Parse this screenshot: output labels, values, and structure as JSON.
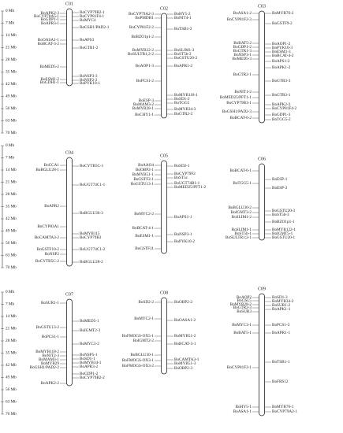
{
  "scale_labels": [
    "0 Mb",
    "7 Mb",
    "14 Mb",
    "21 Mb",
    "28 Mb",
    "35 Mb",
    "42 Mb",
    "49 Mb",
    "56 Mb",
    "63 Mb",
    "70 Mb"
  ],
  "chromosomes": [
    {
      "name": "C01",
      "left": [
        "BoAPK2-3",
        "BoCYP78A5-1",
        "BoGDP1-1",
        "BoAPR3-1",
        "BoOASA1-1",
        "BoBCAT-3-2",
        "BoMED5-2",
        "BoESM1-2",
        "BoGDH1-1"
      ],
      "right": [
        "BoCYP79B2-1",
        "BoCYP81F4-1",
        "BoMYC4",
        "BoGSH1/PAD2-1",
        "BoAPS3",
        "BoGTR1-2",
        "BoNSP3-3",
        "BoNSP2-2",
        "BoPYK10-1"
      ]
    },
    {
      "name": "C02",
      "left": [
        "BoCYP79A2-3",
        "BoPMDH1",
        "BoCYP81F2-2",
        "BoBZO1p1-2",
        "BoMYB22-2",
        "BoSULTR1;2-2",
        "BoAOP1-3",
        "BoPCS1-2",
        "BoESP-3",
        "BoMAM3-2",
        "BoMYB28-1",
        "BoCHY1-1"
      ],
      "right": [
        "BoHY5-2",
        "BoNIT4-1",
        "BoTSB1-2",
        "BoSLIM1-3",
        "BoST5b-2",
        "BoGSTU20-2",
        "BoAPR1-2",
        "BoMYB118-1",
        "BoSD1-2",
        "BoTGG5",
        "BoMYB34-3",
        "BoGTR2-2"
      ]
    },
    {
      "name": "C03",
      "left": [
        "BoASA1-2",
        "BoCYP81F2-3",
        "BoBAT5-2",
        "BoGDP1-2",
        "BoGTR1-3",
        "BoNSP3-1",
        "BoMED5-3",
        "BoGTR2-1",
        "BoNIT1-2",
        "BoMED25/PFT1-1",
        "BoCYP79B3-1",
        "BoGSH1/PAD2-3",
        "BoBCAT-6-2"
      ],
      "right": [
        "BoMYB76-2",
        "BoGSTF9-2",
        "BoAOP1-2",
        "BoPYK10-3",
        "BoESM1-3",
        "BoBCAT-4-2",
        "BoAPS1-2",
        "BoAPK1-2",
        "BoGTR3-3",
        "BoGTR3-1",
        "BoAPK2-3",
        "BoCYP81F4-2",
        "BoGDP1-3",
        "BoTGG5-2"
      ]
    },
    {
      "name": "C04",
      "left": [
        "BoCCA1",
        "BoBGLU28-1",
        "BoAPR2",
        "BoCYP83A1",
        "BoCAMTA3-2",
        "BoGSTF10-2",
        "BoNSP2",
        "BoCYTB5C-2"
      ],
      "right": [
        "BoCYTB5C-1",
        "BoUGT74C1-1",
        "BoBGLU30-3",
        "BoMYB115",
        "BoCYP79B3",
        "BoUGT74C1-2",
        "BoBGLU28-2"
      ]
    },
    {
      "name": "C05",
      "left": [
        "BoAAO4",
        "BoOBP2-1",
        "BoMYB51-1",
        "BoGSTF2-1",
        "BoGSTU13-1",
        "BoMYC2-2",
        "BoBCAT-4-1",
        "BoESM1-1",
        "BoGSTF11"
      ],
      "right": [
        "BoSD2-1",
        "BoCYP79F2",
        "BoST5c",
        "BoUGT74B1-1",
        "BoMED25/PFT1-2",
        "BoAPS1-1",
        "BoNSP3-1",
        "BoPYK10-2"
      ]
    },
    {
      "name": "C06",
      "left": [
        "BoBCAT-6-1",
        "BoTGG5-1",
        "BoBGLU30-2",
        "BoIGMT3-2",
        "BoSLIM1-2",
        "BoSLIM1-1",
        "BoST5b-1",
        "BoSULTR1;2-1"
      ],
      "right": [
        "BoESP-1",
        "BoESP-2",
        "BoGSTU20-3",
        "BoST5b-3",
        "BoBZO1p1-1",
        "BoMYB122-1",
        "BoIGMT5-1",
        "BoGSTU20-1"
      ]
    },
    {
      "name": "C07",
      "left": [
        "BoSUR1-1",
        "BoGSTU13-2",
        "BoPCS1-1",
        "BoMYB118-2",
        "BoNIT2-3",
        "BoMAM3-1",
        "BoMYB29",
        "BoGSH1/PAD2-2",
        "BoAPK2-2"
      ],
      "right": [
        "BoMED5-1",
        "BoIGMT2-3",
        "BoMYC3-2",
        "BoNSP5-1",
        "BoSD1-1",
        "BoMYB34-1",
        "BoAPR3-2",
        "BoGDP1-2",
        "BoCYP79B2-2"
      ]
    },
    {
      "name": "C08",
      "left": [
        "BoSD2-2",
        "BoMYC2-1",
        "BoFMOGS-OX5-1",
        "BoIGMT2-2",
        "BoBGLU30-1",
        "BoFMOGS-OX3-1",
        "BoFMOGS-OX3-2"
      ],
      "right": [
        "BoOBP2-2",
        "BoOASA1-2",
        "BoMYB51-2",
        "BoBCAT-3-1",
        "BoCAMTA3-1",
        "BoMYB51-3",
        "BoOBP2-3"
      ]
    },
    {
      "name": "C09",
      "left": [
        "BoAOP2",
        "BoGSL5",
        "BoMYB28-2",
        "BoGTR2-3",
        "BoSUR3",
        "BoMYC3-1",
        "BoBAT5-1",
        "BoCYP81F2-1",
        "BoHY5-1",
        "BoASA1-1"
      ],
      "right": [
        "BoSD1-3",
        "BoMYB34-2",
        "BoSUR1-2",
        "BoAPK1-1",
        "BoPCS1-3",
        "BoAPR1-1",
        "BoTSB1-1",
        "BoFRS12",
        "BoMYB76-1",
        "BoCYP79A2-1"
      ]
    }
  ]
}
